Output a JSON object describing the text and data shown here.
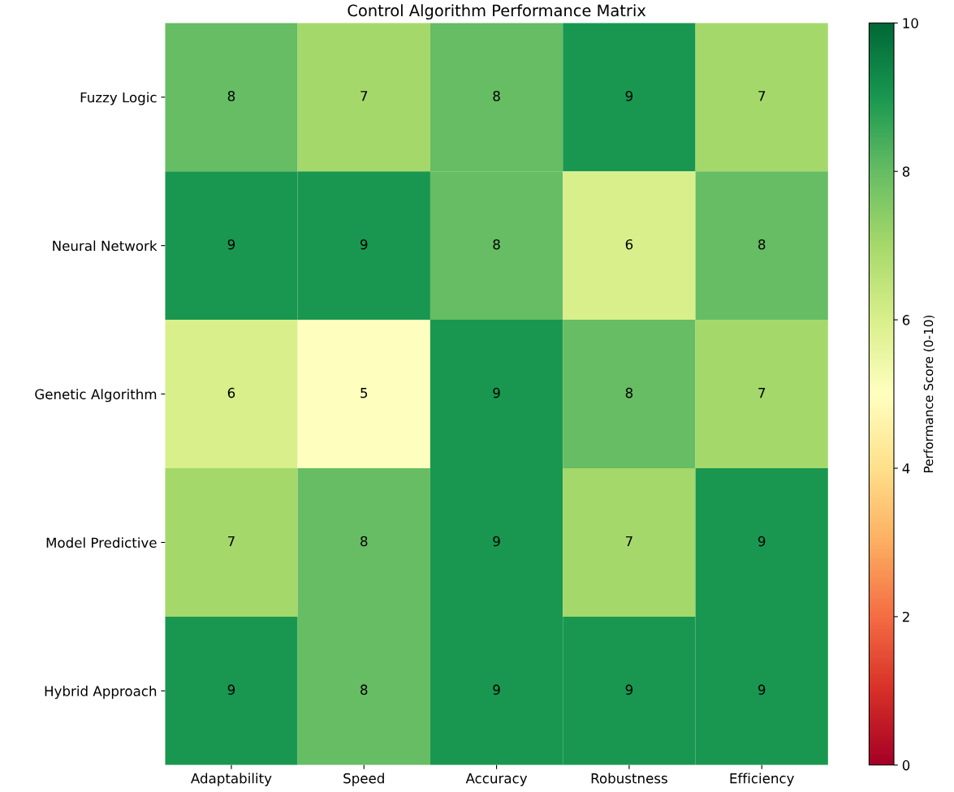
{
  "chart_data": {
    "type": "heatmap",
    "title": "Control Algorithm Performance Matrix",
    "categories": [
      "Adaptability",
      "Speed",
      "Accuracy",
      "Robustness",
      "Efficiency"
    ],
    "y_categories": [
      "Fuzzy Logic",
      "Neural Network",
      "Genetic Algorithm",
      "Model Predictive",
      "Hybrid Approach"
    ],
    "cells": [
      [
        8,
        7,
        8,
        9,
        7
      ],
      [
        9,
        9,
        8,
        6,
        8
      ],
      [
        6,
        5,
        9,
        8,
        7
      ],
      [
        7,
        8,
        9,
        7,
        9
      ],
      [
        9,
        8,
        9,
        9,
        9
      ]
    ],
    "data_labels": true,
    "clabel": "Performance Score (0-10)",
    "clim": [
      0,
      10
    ],
    "cticks": [
      0,
      2,
      4,
      6,
      8,
      10
    ]
  }
}
